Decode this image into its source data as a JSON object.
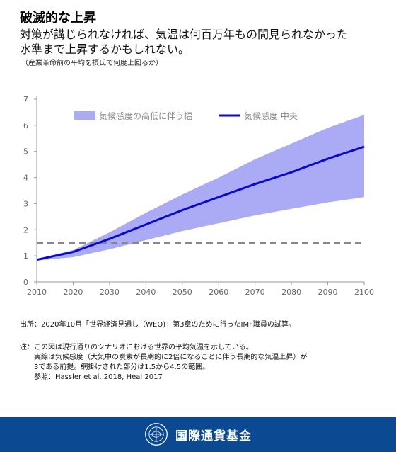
{
  "header": {
    "title": "破滅的な上昇",
    "subtitle_line1": "対策が講じられなければ、気温は何百万年もの間見られなかった",
    "subtitle_line2": "水準まで上昇するかもしれない。",
    "note": "（産業革命前の平均を摂氏で何度上回るか）"
  },
  "chart_data": {
    "type": "area",
    "xlim": [
      2010,
      2100
    ],
    "ylim": [
      0,
      7
    ],
    "x_ticks": [
      "2010",
      "2020",
      "2030",
      "2040",
      "2050",
      "2060",
      "2070",
      "2080",
      "2090",
      "2100"
    ],
    "y_ticks": [
      "0",
      "1",
      "2",
      "3",
      "4",
      "5",
      "6",
      "7"
    ],
    "x": [
      2010,
      2020,
      2030,
      2040,
      2050,
      2060,
      2070,
      2080,
      2090,
      2100
    ],
    "series": [
      {
        "name": "気候感度の高低に伴う幅",
        "kind": "band",
        "color": "#aaaaf5",
        "lower": [
          0.82,
          0.95,
          1.25,
          1.6,
          1.95,
          2.25,
          2.55,
          2.8,
          3.05,
          3.25
        ],
        "upper": [
          0.88,
          1.22,
          1.9,
          2.65,
          3.35,
          4.0,
          4.7,
          5.3,
          5.9,
          6.4
        ]
      },
      {
        "name": "気候感度 中央",
        "kind": "line",
        "color": "#0a0acc",
        "values": [
          0.85,
          1.15,
          1.65,
          2.2,
          2.75,
          3.25,
          3.75,
          4.2,
          4.72,
          5.18
        ]
      }
    ],
    "reference_line": {
      "y": 1.5,
      "style": "dashed",
      "color": "#888888"
    },
    "legend_placement": "top",
    "grid": false
  },
  "footer_text": {
    "source": "出所：2020年10月「世界経済見通し（WEO)」第3章のために行ったIMF職員の試算。",
    "note_label": "注：",
    "note_line1": "この図は現行通りのシナリオにおける世界の平均気温を示している。",
    "note_line2": "実線は気候感度（大気中の炭素が長期的に2倍になることに伴う長期的な気温上昇）が",
    "note_line3": "3である前提。網掛けされた部分は1.5から4.5の範囲。",
    "note_line4": "参照：Hassler et al. 2018, Heal 2017"
  },
  "brand": {
    "org_name": "国際通貨基金",
    "bar_color": "#0b4a93"
  }
}
